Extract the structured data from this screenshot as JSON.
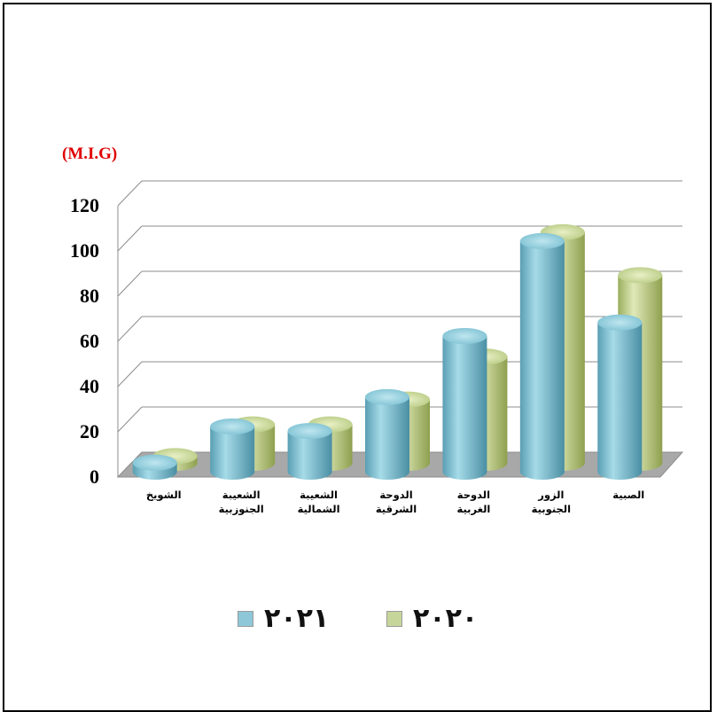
{
  "chart_data": {
    "type": "bar",
    "style": "3d-cylinder",
    "unit_label": "(M.I.G)",
    "categories": [
      "الشويخ",
      "الشعيبة الجنوزبية",
      "الشعيبة الشمالية",
      "الدوحة الشرقية",
      "الدوحة الغربية",
      "الزور الجنوبية",
      "الصبية"
    ],
    "series": [
      {
        "name": "٢٠٢١",
        "values": [
          4,
          20,
          18,
          33,
          60,
          102,
          66
        ],
        "color": "#8ec8d8"
      },
      {
        "name": "٢٠٢٠",
        "values": [
          3,
          17,
          17,
          28,
          47,
          102,
          83
        ],
        "color": "#c6d69a"
      }
    ],
    "ylim": [
      0,
      120
    ],
    "yticks": [
      0,
      20,
      40,
      60,
      80,
      100,
      120
    ],
    "grid": true,
    "legend_position": "bottom"
  }
}
